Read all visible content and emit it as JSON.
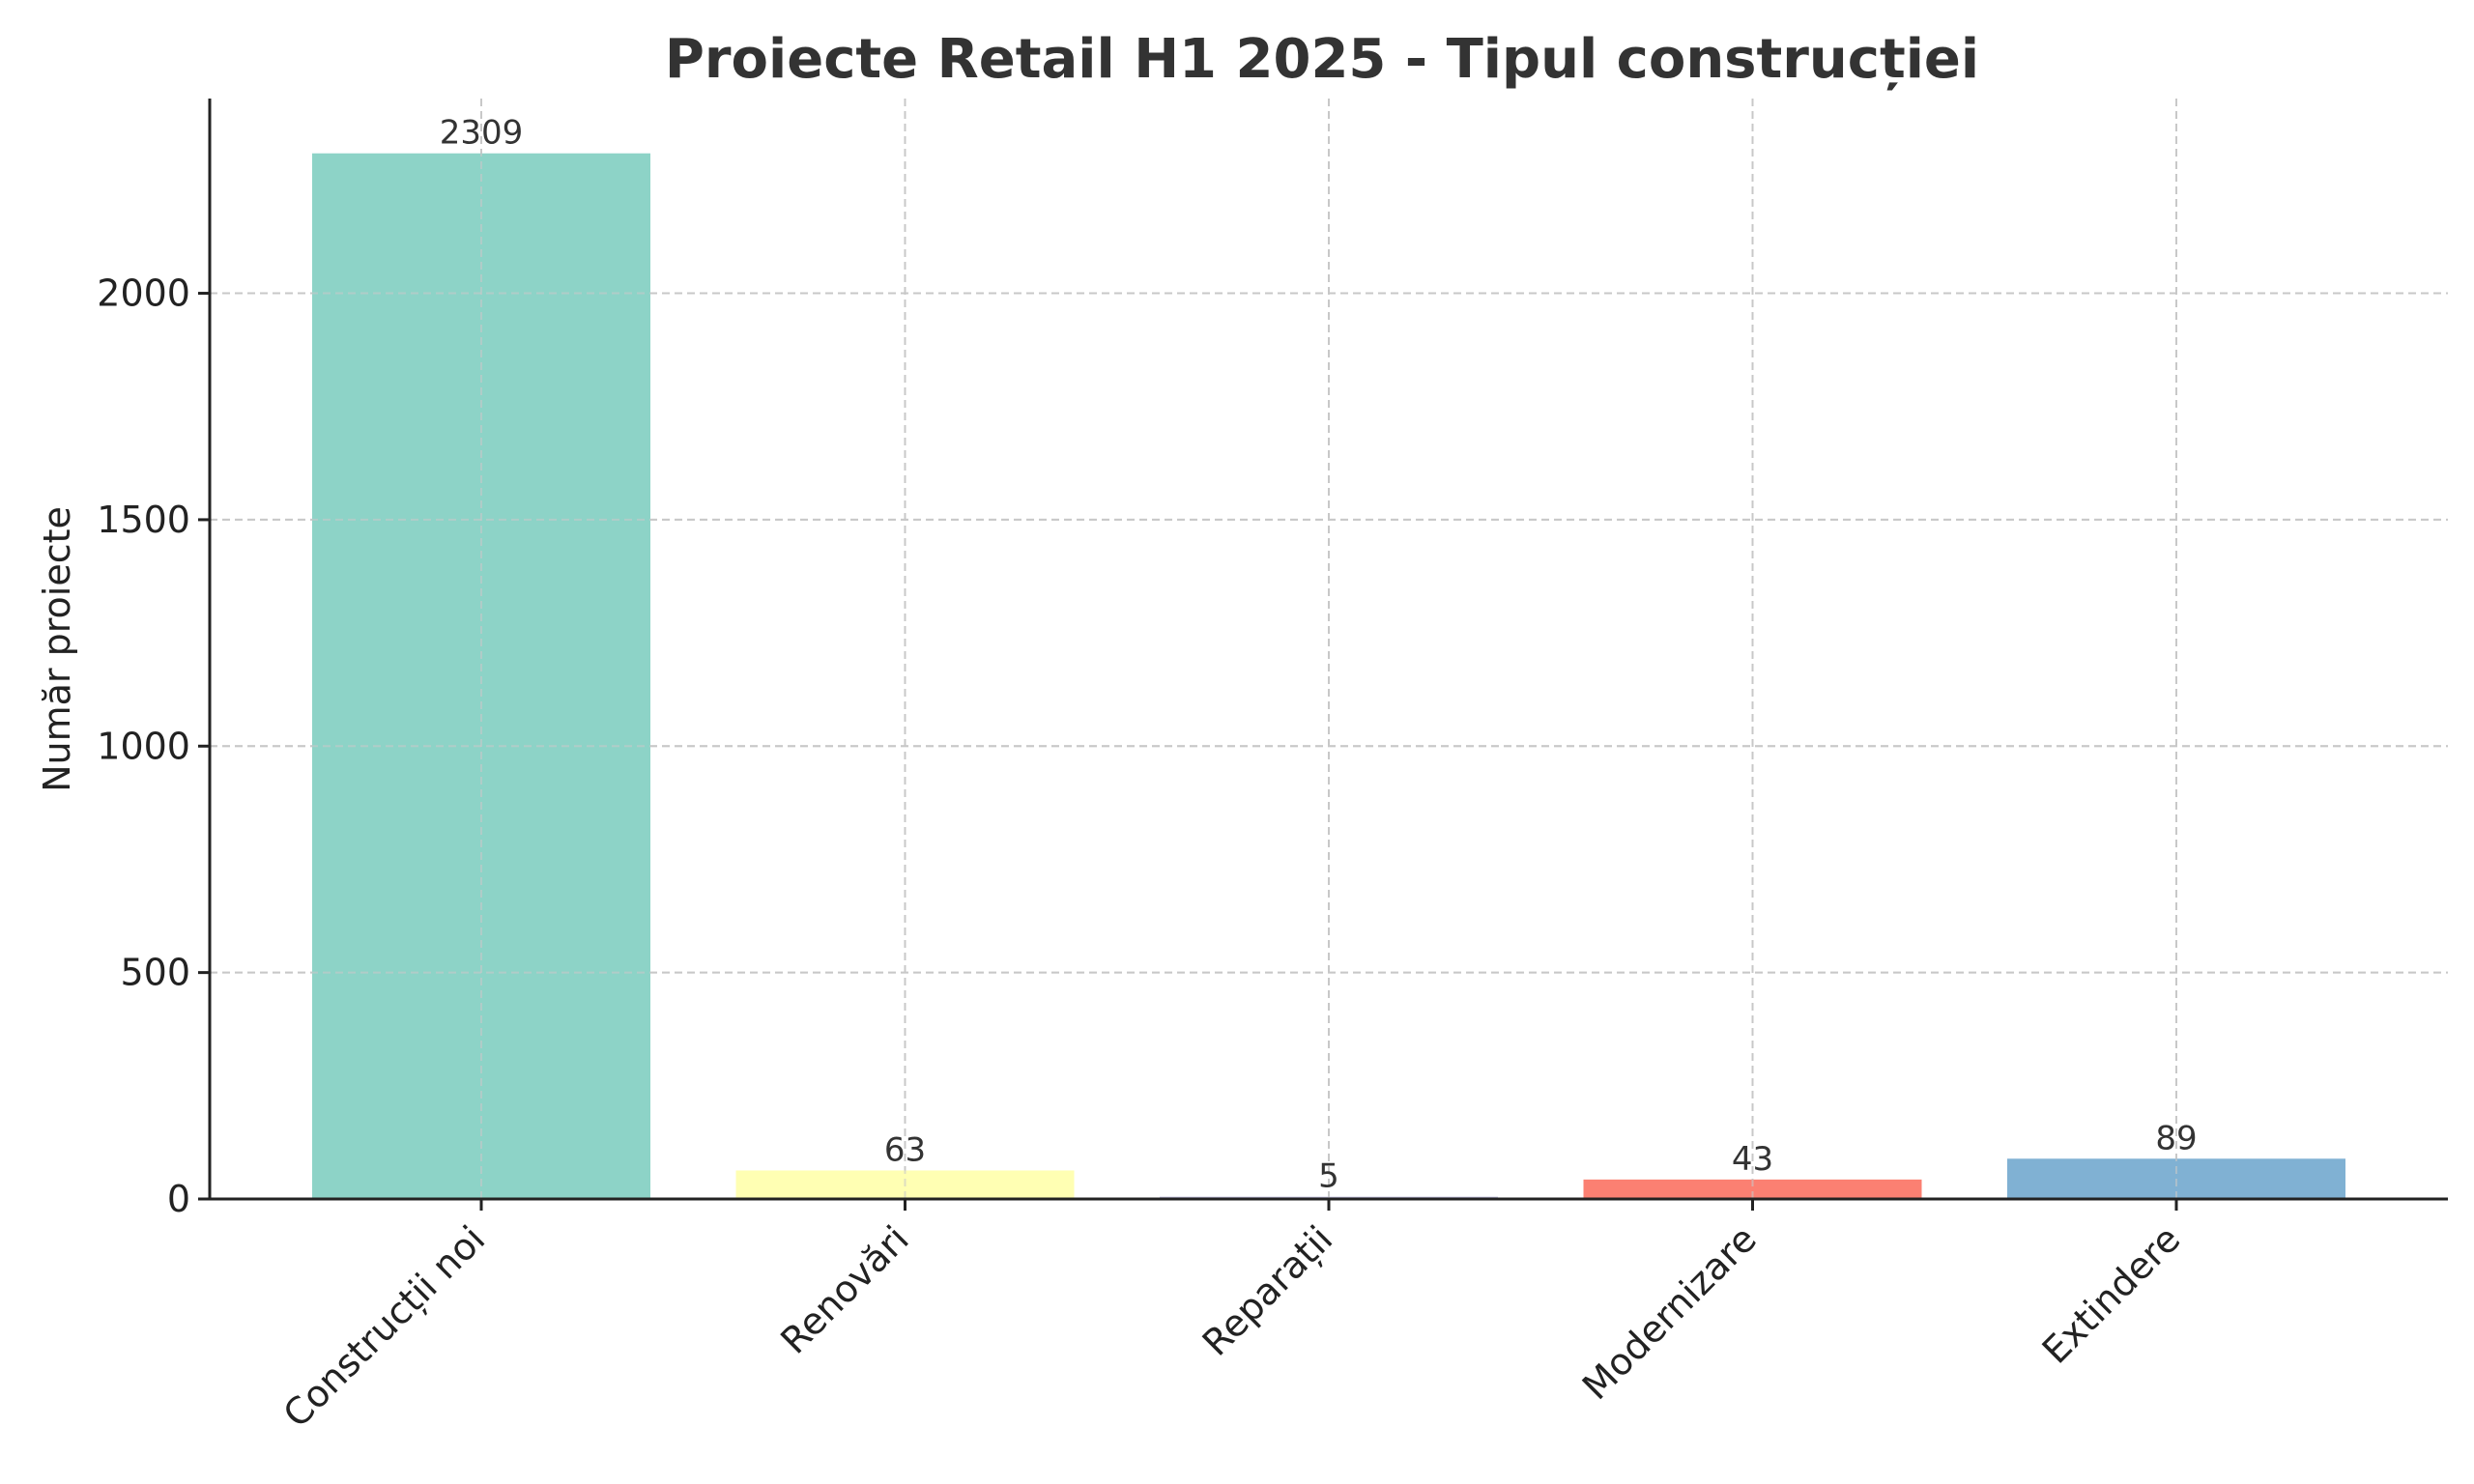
{
  "chart_data": {
    "type": "bar",
    "title": "Proiecte Retail H1 2025 - Tipul construcției",
    "xlabel": "",
    "ylabel": "Număr proiecte",
    "categories": [
      "Construcții noi",
      "Renovări",
      "Reparații",
      "Modernizare",
      "Extindere"
    ],
    "values": [
      2309,
      63,
      5,
      43,
      89
    ],
    "colors": [
      "#8dd3c7",
      "#ffffb3",
      "#bebada",
      "#fb8072",
      "#80b1d3"
    ],
    "ylim": [
      0,
      2430
    ],
    "yticks": [
      0,
      500,
      1000,
      1500,
      2000
    ],
    "grid": true,
    "legend": "none"
  }
}
